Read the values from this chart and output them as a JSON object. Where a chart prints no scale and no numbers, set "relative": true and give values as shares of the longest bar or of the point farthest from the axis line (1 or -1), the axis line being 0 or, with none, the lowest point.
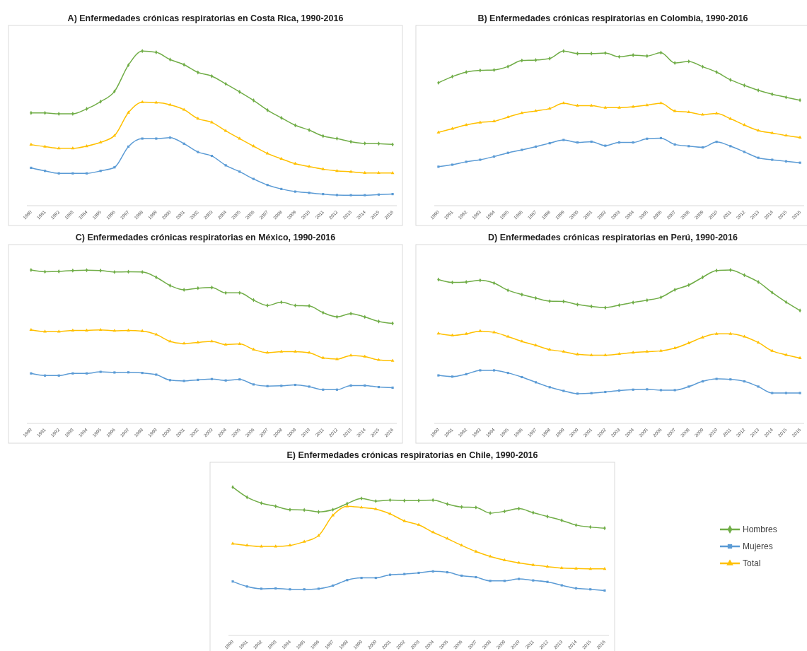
{
  "chart_data": [
    {
      "type": "line",
      "title": "A) Enfermedades crónicas respiratorias en Costa Rica, 1990-2016",
      "relative": true,
      "legend": false,
      "categories": [
        "1990",
        "1991",
        "1992",
        "1993",
        "1994",
        "1995",
        "1996",
        "1997",
        "1998",
        "1999",
        "2000",
        "2001",
        "2002",
        "2003",
        "2004",
        "2005",
        "2006",
        "2007",
        "2008",
        "2009",
        "2010",
        "2011",
        "2012",
        "2013",
        "2014",
        "2015",
        "2016"
      ],
      "series": [
        {
          "color": "#70ad47",
          "marker": "diamond",
          "values": [
            0.6,
            0.6,
            0.594,
            0.594,
            0.626,
            0.673,
            0.739,
            0.909,
            1,
            0.992,
            0.945,
            0.912,
            0.862,
            0.838,
            0.788,
            0.736,
            0.681,
            0.618,
            0.568,
            0.52,
            0.489,
            0.45,
            0.434,
            0.414,
            0.403,
            0.401,
            0.396
          ]
        },
        {
          "color": "#5b9bd5",
          "marker": "square",
          "values": [
            0.245,
            0.225,
            0.209,
            0.209,
            0.209,
            0.225,
            0.248,
            0.382,
            0.434,
            0.434,
            0.44,
            0.401,
            0.347,
            0.322,
            0.261,
            0.22,
            0.173,
            0.134,
            0.108,
            0.091,
            0.083,
            0.075,
            0.069,
            0.068,
            0.068,
            0.072,
            0.075
          ]
        },
        {
          "color": "#ffc000",
          "marker": "triangle",
          "values": [
            0.395,
            0.382,
            0.371,
            0.371,
            0.385,
            0.41,
            0.453,
            0.602,
            0.67,
            0.667,
            0.653,
            0.621,
            0.563,
            0.539,
            0.484,
            0.434,
            0.385,
            0.338,
            0.303,
            0.272,
            0.253,
            0.236,
            0.225,
            0.219,
            0.212,
            0.212,
            0.211
          ]
        }
      ]
    },
    {
      "type": "line",
      "title": "B) Enfermedades crónicas respiratorias en Colombia, 1990-2016",
      "relative": true,
      "legend": false,
      "categories": [
        "1990",
        "1991",
        "1992",
        "1993",
        "1994",
        "1995",
        "1996",
        "1997",
        "1998",
        "1999",
        "2000",
        "2001",
        "2002",
        "2003",
        "2004",
        "2005",
        "2006",
        "2007",
        "2008",
        "2009",
        "2010",
        "2011",
        "2012",
        "2013",
        "2014",
        "2015",
        "2016"
      ],
      "series": [
        {
          "color": "#70ad47",
          "marker": "diamond",
          "values": [
            0.795,
            0.835,
            0.864,
            0.875,
            0.878,
            0.9,
            0.939,
            0.942,
            0.952,
            1,
            0.984,
            0.984,
            0.987,
            0.963,
            0.974,
            0.968,
            0.99,
            0.923,
            0.933,
            0.899,
            0.864,
            0.814,
            0.778,
            0.746,
            0.721,
            0.701,
            0.682
          ]
        },
        {
          "color": "#5b9bd5",
          "marker": "square",
          "values": [
            0.252,
            0.265,
            0.284,
            0.297,
            0.318,
            0.342,
            0.361,
            0.382,
            0.404,
            0.425,
            0.409,
            0.414,
            0.388,
            0.409,
            0.409,
            0.433,
            0.437,
            0.396,
            0.385,
            0.377,
            0.413,
            0.385,
            0.348,
            0.31,
            0.297,
            0.287,
            0.278
          ]
        },
        {
          "color": "#ffc000",
          "marker": "triangle",
          "values": [
            0.474,
            0.498,
            0.522,
            0.538,
            0.546,
            0.573,
            0.599,
            0.613,
            0.628,
            0.663,
            0.647,
            0.647,
            0.634,
            0.634,
            0.64,
            0.65,
            0.663,
            0.612,
            0.605,
            0.589,
            0.597,
            0.562,
            0.522,
            0.486,
            0.47,
            0.454,
            0.441
          ]
        }
      ]
    },
    {
      "type": "line",
      "title": "C) Enfermedades crónicas respiratorias en México, 1990-2016",
      "relative": true,
      "legend": false,
      "categories": [
        "1990",
        "1991",
        "1992",
        "1993",
        "1994",
        "1995",
        "1996",
        "1997",
        "1998",
        "1999",
        "2000",
        "2001",
        "2002",
        "2003",
        "2004",
        "2005",
        "2006",
        "2007",
        "2008",
        "2009",
        "2010",
        "2011",
        "2012",
        "2013",
        "2014",
        "2015",
        "2016"
      ],
      "series": [
        {
          "color": "#70ad47",
          "marker": "diamond",
          "values": [
            1,
            0.989,
            0.991,
            0.997,
            0.999,
            0.997,
            0.987,
            0.989,
            0.987,
            0.953,
            0.899,
            0.871,
            0.882,
            0.886,
            0.851,
            0.851,
            0.804,
            0.769,
            0.79,
            0.769,
            0.766,
            0.722,
            0.695,
            0.716,
            0.694,
            0.665,
            0.652
          ]
        },
        {
          "color": "#5b9bd5",
          "marker": "square",
          "values": [
            0.326,
            0.312,
            0.312,
            0.326,
            0.326,
            0.336,
            0.332,
            0.333,
            0.329,
            0.318,
            0.282,
            0.277,
            0.284,
            0.289,
            0.28,
            0.287,
            0.254,
            0.243,
            0.245,
            0.251,
            0.24,
            0.22,
            0.22,
            0.247,
            0.247,
            0.237,
            0.233
          ]
        },
        {
          "color": "#ffc000",
          "marker": "triangle",
          "values": [
            0.61,
            0.599,
            0.599,
            0.606,
            0.606,
            0.61,
            0.604,
            0.606,
            0.602,
            0.58,
            0.535,
            0.521,
            0.528,
            0.535,
            0.514,
            0.518,
            0.482,
            0.461,
            0.468,
            0.468,
            0.461,
            0.427,
            0.419,
            0.443,
            0.436,
            0.414,
            0.409
          ]
        }
      ]
    },
    {
      "type": "line",
      "title": "D) Enfermedades crónicas respiratorias en Perú, 1990-2016",
      "relative": true,
      "legend": false,
      "categories": [
        "1990",
        "1991",
        "1992",
        "1993",
        "1994",
        "1995",
        "1996",
        "1997",
        "1998",
        "1999",
        "2000",
        "2001",
        "2002",
        "2003",
        "2004",
        "2005",
        "2006",
        "2007",
        "2008",
        "2009",
        "2010",
        "2011",
        "2012",
        "2013",
        "2014",
        "2015",
        "2016"
      ],
      "series": [
        {
          "color": "#70ad47",
          "marker": "diamond",
          "values": [
            0.938,
            0.919,
            0.922,
            0.933,
            0.915,
            0.868,
            0.84,
            0.817,
            0.797,
            0.795,
            0.775,
            0.763,
            0.755,
            0.771,
            0.788,
            0.803,
            0.822,
            0.871,
            0.902,
            0.953,
            0.997,
            1,
            0.967,
            0.922,
            0.853,
            0.791,
            0.736
          ]
        },
        {
          "color": "#5b9bd5",
          "marker": "square",
          "values": [
            0.313,
            0.305,
            0.321,
            0.346,
            0.346,
            0.329,
            0.302,
            0.268,
            0.236,
            0.212,
            0.194,
            0.197,
            0.205,
            0.214,
            0.22,
            0.222,
            0.217,
            0.217,
            0.24,
            0.274,
            0.29,
            0.287,
            0.274,
            0.24,
            0.198,
            0.198,
            0.198
          ]
        },
        {
          "color": "#ffc000",
          "marker": "triangle",
          "values": [
            0.586,
            0.574,
            0.584,
            0.602,
            0.594,
            0.566,
            0.535,
            0.509,
            0.481,
            0.468,
            0.45,
            0.445,
            0.445,
            0.453,
            0.462,
            0.468,
            0.473,
            0.491,
            0.524,
            0.561,
            0.584,
            0.584,
            0.566,
            0.527,
            0.473,
            0.447,
            0.426
          ]
        }
      ]
    },
    {
      "type": "line",
      "title": "E) Enfermedades crónicas respiratorias en Chile, 1990-2016",
      "relative": true,
      "legend": "right",
      "categories": [
        "1990",
        "1991",
        "1992",
        "1993",
        "1994",
        "1995",
        "1996",
        "1997",
        "1998",
        "1999",
        "2000",
        "2001",
        "2002",
        "2003",
        "2004",
        "2005",
        "2006",
        "2007",
        "2008",
        "2009",
        "2010",
        "2011",
        "2012",
        "2013",
        "2014",
        "2015",
        "2016"
      ],
      "series": [
        {
          "name": "Hombres",
          "color": "#70ad47",
          "marker": "diamond",
          "values": [
            1,
            0.932,
            0.892,
            0.871,
            0.848,
            0.846,
            0.833,
            0.848,
            0.889,
            0.924,
            0.906,
            0.913,
            0.909,
            0.909,
            0.913,
            0.886,
            0.866,
            0.863,
            0.825,
            0.837,
            0.855,
            0.828,
            0.802,
            0.776,
            0.744,
            0.731,
            0.723
          ]
        },
        {
          "name": "Mujeres",
          "color": "#5b9bd5",
          "marker": "square",
          "values": [
            0.364,
            0.33,
            0.315,
            0.317,
            0.311,
            0.311,
            0.315,
            0.336,
            0.373,
            0.388,
            0.388,
            0.409,
            0.414,
            0.422,
            0.432,
            0.426,
            0.403,
            0.393,
            0.368,
            0.368,
            0.381,
            0.371,
            0.361,
            0.338,
            0.318,
            0.311,
            0.303
          ]
        },
        {
          "name": "Total",
          "color": "#ffc000",
          "marker": "triangle",
          "values": [
            0.619,
            0.607,
            0.6,
            0.6,
            0.607,
            0.632,
            0.673,
            0.81,
            0.871,
            0.863,
            0.852,
            0.82,
            0.772,
            0.746,
            0.696,
            0.653,
            0.607,
            0.566,
            0.533,
            0.508,
            0.49,
            0.475,
            0.464,
            0.455,
            0.451,
            0.449,
            0.449
          ]
        }
      ]
    }
  ]
}
